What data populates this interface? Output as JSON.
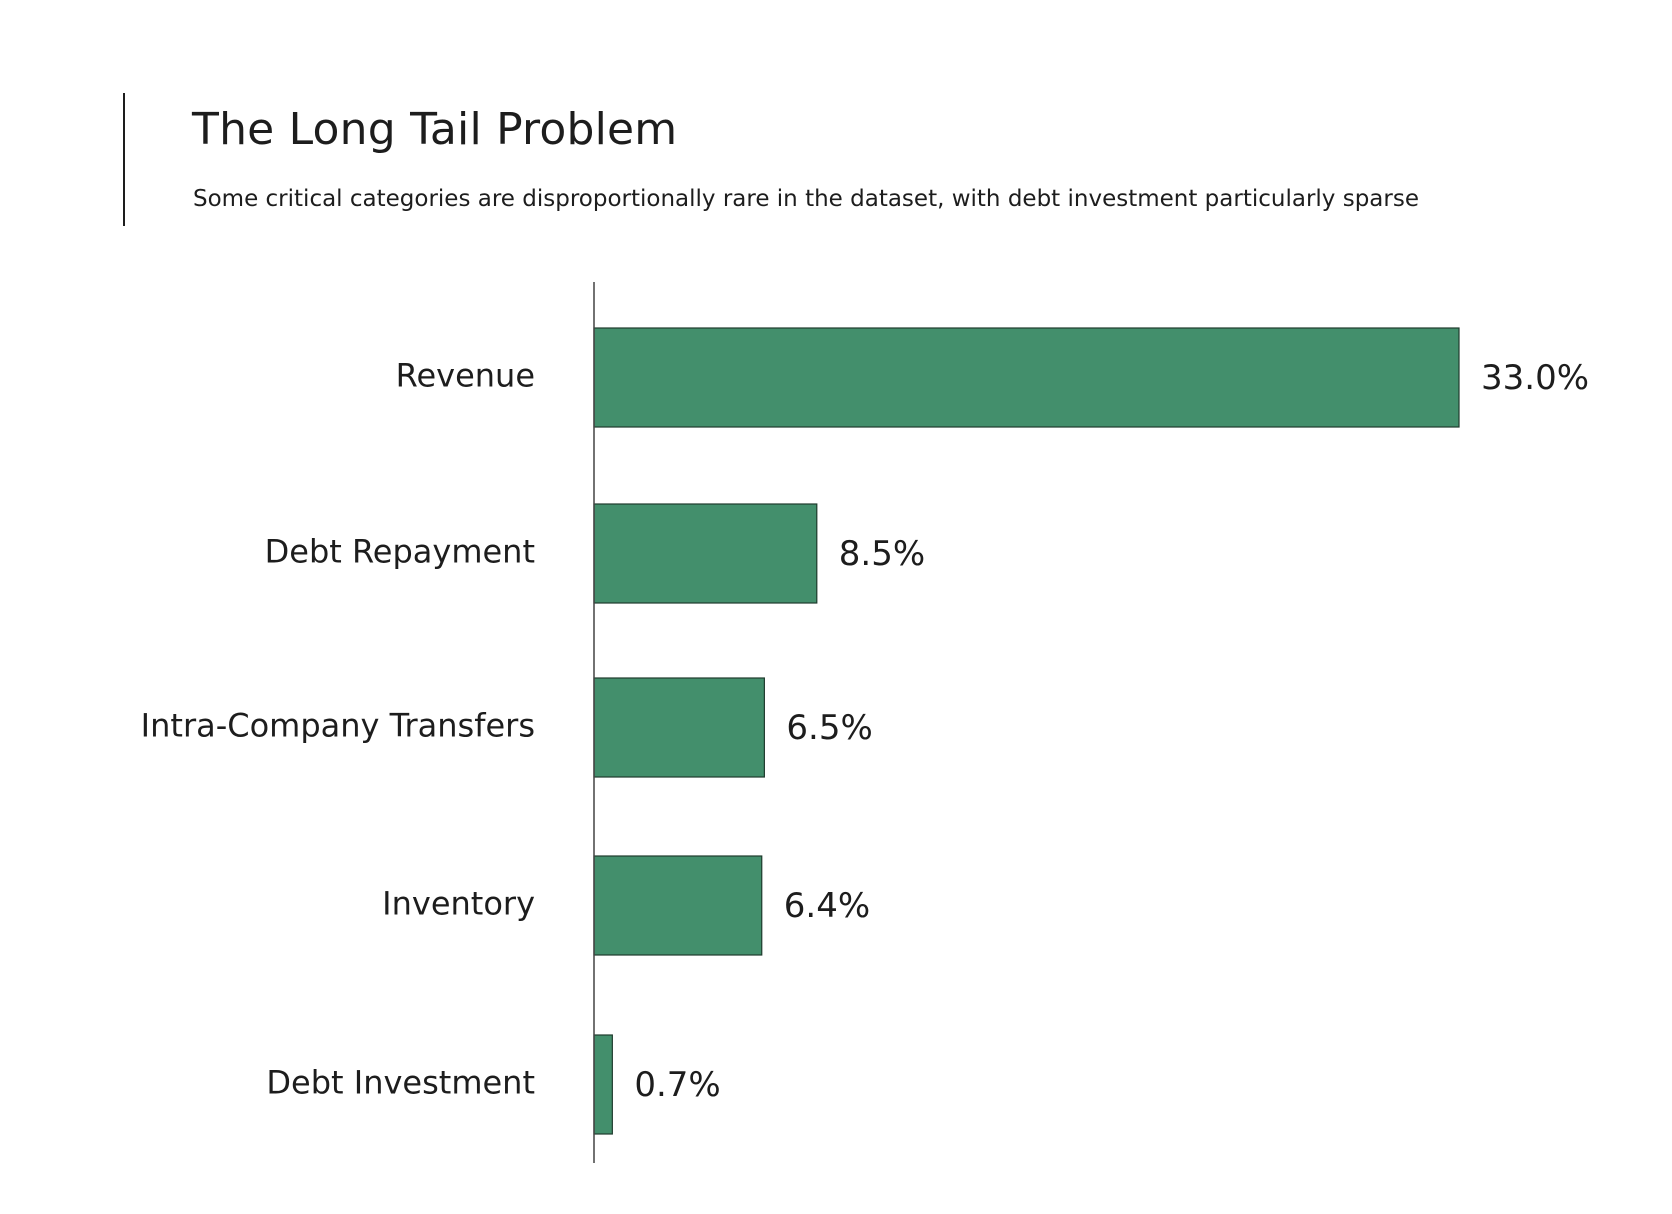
{
  "header": {
    "title": "The Long Tail Problem",
    "subtitle": "Some critical categories are disproportionally rare in the dataset, with debt investment particularly sparse"
  },
  "colors": {
    "bar_fill": "#438f6c",
    "bar_stroke": "#1f3b2d",
    "axis": "#444444",
    "text": "#1d1d1d"
  },
  "chart_data": {
    "type": "bar",
    "orientation": "horizontal",
    "title": "The Long Tail Problem",
    "subtitle": "Some critical categories are disproportionally rare in the dataset, with debt investment particularly sparse",
    "xlabel": "",
    "ylabel": "",
    "grid": false,
    "legend": "none",
    "categories": [
      "Revenue",
      "Debt Repayment",
      "Intra-Company Transfers",
      "Inventory",
      "Debt Investment"
    ],
    "values": [
      33.0,
      8.5,
      6.5,
      6.4,
      0.7
    ],
    "value_labels": [
      "33.0%",
      "8.5%",
      "6.5%",
      "6.4%",
      "0.7%"
    ],
    "unit": "%",
    "xlim": [
      0,
      33.0
    ]
  }
}
